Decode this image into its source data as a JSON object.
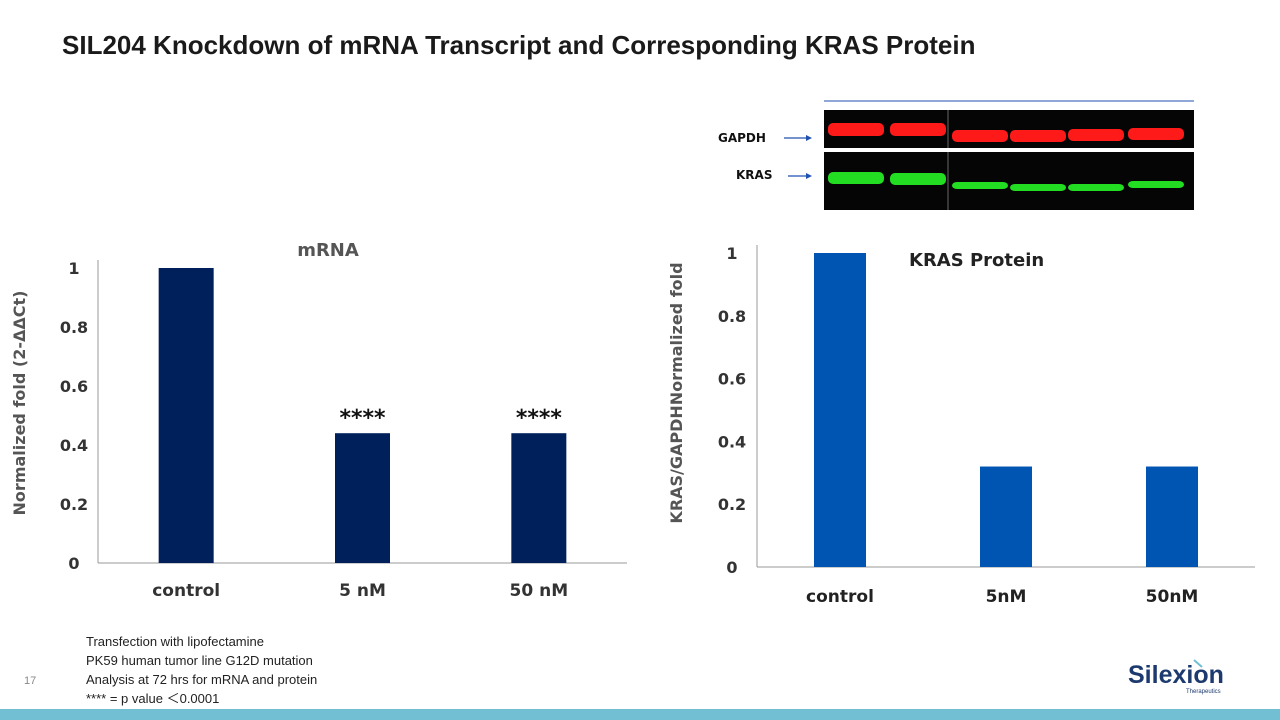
{
  "title": "SIL204 Knockdown of mRNA Transcript and Corresponding KRAS Protein",
  "page_number": "17",
  "notes": [
    "Transfection with lipofectamine",
    "PK59 human tumor line G12D mutation",
    "Analysis at 72 hrs for mRNA and protein",
    "**** = p value ＜0.0001"
  ],
  "logo": {
    "name": "Silexion",
    "tagline": "Therapeutics"
  },
  "blot": {
    "labels": [
      "GAPDH",
      "KRAS"
    ],
    "lanes": 6,
    "colors": {
      "gapdh": "#ff1a1a",
      "kras": "#22dd22",
      "background": "#050505"
    }
  },
  "colors": {
    "mrna_bar": "#00205b",
    "protein_bar": "#0055b3",
    "accent_bar": "#72bfd4"
  },
  "chart_data": [
    {
      "type": "bar",
      "title": "mRNA",
      "categories": [
        "control",
        "5 nM",
        "50 nM"
      ],
      "values": [
        1.0,
        0.44,
        0.44
      ],
      "annotations": [
        "",
        "****",
        "****"
      ],
      "xlabel": "",
      "ylabel": "Normalized fold (2-ΔΔCt)",
      "ylim": [
        0,
        1
      ],
      "yticks": [
        "0",
        "0.2",
        "0.4",
        "0.6",
        "0.8",
        "1"
      ],
      "grid": false
    },
    {
      "type": "bar",
      "title": "KRAS Protein",
      "categories": [
        "control",
        "5nM",
        "50nM"
      ],
      "values": [
        1.0,
        0.32,
        0.32
      ],
      "xlabel": "",
      "ylabel": "KRAS/GAPDHNormalized fold",
      "ylim": [
        0,
        1
      ],
      "yticks": [
        "0",
        "0.2",
        "0.4",
        "0.6",
        "0.8",
        "1"
      ],
      "grid": false
    }
  ]
}
